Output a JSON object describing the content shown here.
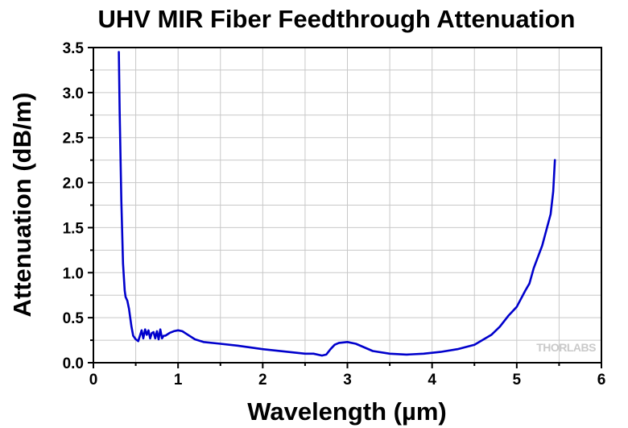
{
  "chart_data": {
    "type": "line",
    "title": "UHV MIR Fiber Feedthrough Attenuation",
    "xlabel": "Wavelength (µm)",
    "ylabel": "Attenuation (dB/m)",
    "xlim": [
      0,
      6
    ],
    "ylim": [
      0.0,
      3.5
    ],
    "x_ticks": [
      "0",
      "1",
      "2",
      "3",
      "4",
      "5",
      "6"
    ],
    "y_ticks": [
      "0.0",
      "0.5",
      "1.0",
      "1.5",
      "2.0",
      "2.5",
      "3.0",
      "3.5"
    ],
    "grid": true,
    "watermark": "THORLABS",
    "series": [
      {
        "color": "#0000cc",
        "x": [
          0.3,
          0.31,
          0.33,
          0.35,
          0.37,
          0.38,
          0.4,
          0.42,
          0.45,
          0.47,
          0.5,
          0.53,
          0.55,
          0.57,
          0.59,
          0.61,
          0.63,
          0.65,
          0.67,
          0.69,
          0.71,
          0.73,
          0.75,
          0.77,
          0.79,
          0.81,
          0.83,
          0.85,
          0.9,
          0.95,
          1.0,
          1.05,
          1.1,
          1.2,
          1.3,
          1.5,
          1.7,
          2.0,
          2.3,
          2.5,
          2.6,
          2.7,
          2.75,
          2.8,
          2.85,
          2.9,
          3.0,
          3.1,
          3.2,
          3.3,
          3.5,
          3.7,
          3.9,
          4.1,
          4.3,
          4.5,
          4.7,
          4.8,
          4.9,
          5.0,
          5.1,
          5.15,
          5.2,
          5.3,
          5.4,
          5.43,
          5.45
        ],
        "y": [
          3.45,
          2.8,
          1.8,
          1.1,
          0.8,
          0.73,
          0.69,
          0.6,
          0.4,
          0.3,
          0.26,
          0.24,
          0.3,
          0.36,
          0.27,
          0.37,
          0.31,
          0.36,
          0.27,
          0.33,
          0.34,
          0.27,
          0.35,
          0.26,
          0.37,
          0.27,
          0.3,
          0.3,
          0.33,
          0.35,
          0.36,
          0.35,
          0.32,
          0.26,
          0.23,
          0.21,
          0.19,
          0.15,
          0.12,
          0.1,
          0.1,
          0.08,
          0.09,
          0.15,
          0.2,
          0.22,
          0.23,
          0.21,
          0.17,
          0.13,
          0.1,
          0.09,
          0.1,
          0.12,
          0.15,
          0.2,
          0.31,
          0.4,
          0.52,
          0.62,
          0.8,
          0.88,
          1.05,
          1.3,
          1.65,
          1.9,
          2.25
        ]
      }
    ]
  }
}
